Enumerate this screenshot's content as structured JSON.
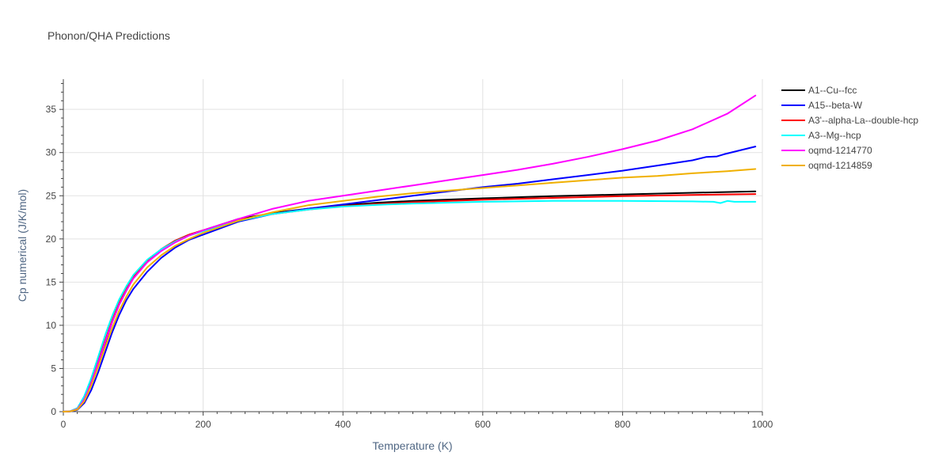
{
  "chart_data": {
    "type": "line",
    "title": "Phonon/QHA Predictions",
    "xlabel": "Temperature (K)",
    "ylabel": "Cp numerical (J/K/mol)",
    "xlim": [
      0,
      1000
    ],
    "ylim": [
      0,
      38.5
    ],
    "xticks": [
      0,
      200,
      400,
      600,
      800,
      1000
    ],
    "yticks": [
      0,
      5,
      10,
      15,
      20,
      25,
      30,
      35
    ],
    "grid": true,
    "legend_position": "right",
    "series": [
      {
        "name": "A1--Cu--fcc",
        "color": "#000000",
        "points": [
          [
            0,
            0
          ],
          [
            10,
            0.05
          ],
          [
            20,
            0.3
          ],
          [
            30,
            1.4
          ],
          [
            40,
            3.3
          ],
          [
            50,
            5.6
          ],
          [
            60,
            8.0
          ],
          [
            70,
            10.4
          ],
          [
            80,
            12.4
          ],
          [
            90,
            14.0
          ],
          [
            100,
            15.5
          ],
          [
            120,
            17.4
          ],
          [
            140,
            18.8
          ],
          [
            160,
            19.8
          ],
          [
            180,
            20.5
          ],
          [
            200,
            21.0
          ],
          [
            250,
            22.3
          ],
          [
            300,
            23.0
          ],
          [
            350,
            23.5
          ],
          [
            400,
            23.9
          ],
          [
            450,
            24.2
          ],
          [
            500,
            24.4
          ],
          [
            600,
            24.7
          ],
          [
            700,
            24.95
          ],
          [
            800,
            25.15
          ],
          [
            900,
            25.35
          ],
          [
            990,
            25.5
          ]
        ]
      },
      {
        "name": "A15--beta-W",
        "color": "#0000ff",
        "points": [
          [
            0,
            0
          ],
          [
            10,
            0.02
          ],
          [
            20,
            0.2
          ],
          [
            30,
            1.0
          ],
          [
            40,
            2.5
          ],
          [
            50,
            4.6
          ],
          [
            60,
            6.9
          ],
          [
            70,
            9.2
          ],
          [
            80,
            11.2
          ],
          [
            90,
            12.9
          ],
          [
            100,
            14.2
          ],
          [
            120,
            16.2
          ],
          [
            140,
            17.8
          ],
          [
            160,
            19.0
          ],
          [
            180,
            19.9
          ],
          [
            200,
            20.5
          ],
          [
            250,
            22.0
          ],
          [
            300,
            22.9
          ],
          [
            350,
            23.5
          ],
          [
            400,
            24.0
          ],
          [
            450,
            24.5
          ],
          [
            500,
            25.0
          ],
          [
            550,
            25.5
          ],
          [
            600,
            26.0
          ],
          [
            650,
            26.4
          ],
          [
            700,
            26.9
          ],
          [
            750,
            27.4
          ],
          [
            800,
            27.9
          ],
          [
            850,
            28.5
          ],
          [
            900,
            29.1
          ],
          [
            920,
            29.5
          ],
          [
            935,
            29.55
          ],
          [
            945,
            29.8
          ],
          [
            960,
            30.1
          ],
          [
            990,
            30.7
          ]
        ]
      },
      {
        "name": "A3'--alpha-La--double-hcp",
        "color": "#ff0000",
        "points": [
          [
            0,
            0
          ],
          [
            10,
            0.05
          ],
          [
            20,
            0.3
          ],
          [
            30,
            1.5
          ],
          [
            40,
            3.5
          ],
          [
            50,
            5.9
          ],
          [
            60,
            8.3
          ],
          [
            70,
            10.6
          ],
          [
            80,
            12.6
          ],
          [
            90,
            14.2
          ],
          [
            100,
            15.6
          ],
          [
            120,
            17.5
          ],
          [
            140,
            18.8
          ],
          [
            160,
            19.8
          ],
          [
            180,
            20.5
          ],
          [
            200,
            21.0
          ],
          [
            250,
            22.2
          ],
          [
            300,
            22.9
          ],
          [
            350,
            23.4
          ],
          [
            400,
            23.8
          ],
          [
            450,
            24.05
          ],
          [
            500,
            24.25
          ],
          [
            600,
            24.55
          ],
          [
            700,
            24.75
          ],
          [
            800,
            24.95
          ],
          [
            900,
            25.1
          ],
          [
            990,
            25.2
          ]
        ]
      },
      {
        "name": "A3--Mg--hcp",
        "color": "#00ffff",
        "points": [
          [
            0,
            0
          ],
          [
            10,
            0.06
          ],
          [
            20,
            0.4
          ],
          [
            30,
            1.8
          ],
          [
            40,
            3.9
          ],
          [
            50,
            6.4
          ],
          [
            60,
            8.9
          ],
          [
            70,
            11.1
          ],
          [
            80,
            13.0
          ],
          [
            90,
            14.5
          ],
          [
            100,
            15.8
          ],
          [
            120,
            17.6
          ],
          [
            140,
            18.8
          ],
          [
            160,
            19.7
          ],
          [
            180,
            20.4
          ],
          [
            200,
            20.9
          ],
          [
            250,
            22.1
          ],
          [
            300,
            22.9
          ],
          [
            350,
            23.4
          ],
          [
            400,
            23.75
          ],
          [
            450,
            23.95
          ],
          [
            500,
            24.1
          ],
          [
            600,
            24.3
          ],
          [
            700,
            24.4
          ],
          [
            800,
            24.4
          ],
          [
            900,
            24.35
          ],
          [
            930,
            24.3
          ],
          [
            940,
            24.15
          ],
          [
            950,
            24.4
          ],
          [
            960,
            24.3
          ],
          [
            990,
            24.3
          ]
        ]
      },
      {
        "name": "oqmd-1214770",
        "color": "#ff00ff",
        "points": [
          [
            0,
            0
          ],
          [
            10,
            0.05
          ],
          [
            20,
            0.3
          ],
          [
            30,
            1.4
          ],
          [
            40,
            3.3
          ],
          [
            50,
            5.7
          ],
          [
            60,
            8.1
          ],
          [
            70,
            10.4
          ],
          [
            80,
            12.4
          ],
          [
            90,
            14.0
          ],
          [
            100,
            15.4
          ],
          [
            120,
            17.3
          ],
          [
            140,
            18.6
          ],
          [
            160,
            19.6
          ],
          [
            180,
            20.4
          ],
          [
            200,
            21.0
          ],
          [
            250,
            22.3
          ],
          [
            300,
            23.5
          ],
          [
            350,
            24.4
          ],
          [
            400,
            25.0
          ],
          [
            450,
            25.6
          ],
          [
            500,
            26.2
          ],
          [
            550,
            26.8
          ],
          [
            600,
            27.4
          ],
          [
            650,
            28.0
          ],
          [
            700,
            28.7
          ],
          [
            750,
            29.5
          ],
          [
            800,
            30.4
          ],
          [
            850,
            31.4
          ],
          [
            900,
            32.7
          ],
          [
            950,
            34.5
          ],
          [
            990,
            36.6
          ]
        ]
      },
      {
        "name": "oqmd-1214859",
        "color": "#f0b000",
        "points": [
          [
            0,
            0
          ],
          [
            10,
            0.04
          ],
          [
            20,
            0.25
          ],
          [
            30,
            1.2
          ],
          [
            40,
            3.0
          ],
          [
            50,
            5.2
          ],
          [
            60,
            7.5
          ],
          [
            70,
            9.7
          ],
          [
            80,
            11.7
          ],
          [
            90,
            13.3
          ],
          [
            100,
            14.7
          ],
          [
            120,
            16.7
          ],
          [
            140,
            18.1
          ],
          [
            160,
            19.2
          ],
          [
            180,
            20.0
          ],
          [
            200,
            20.7
          ],
          [
            250,
            22.1
          ],
          [
            300,
            23.1
          ],
          [
            350,
            23.9
          ],
          [
            400,
            24.4
          ],
          [
            450,
            24.9
          ],
          [
            500,
            25.3
          ],
          [
            550,
            25.6
          ],
          [
            600,
            25.9
          ],
          [
            650,
            26.2
          ],
          [
            700,
            26.5
          ],
          [
            750,
            26.8
          ],
          [
            800,
            27.1
          ],
          [
            850,
            27.3
          ],
          [
            900,
            27.6
          ],
          [
            950,
            27.85
          ],
          [
            990,
            28.1
          ]
        ]
      }
    ]
  }
}
